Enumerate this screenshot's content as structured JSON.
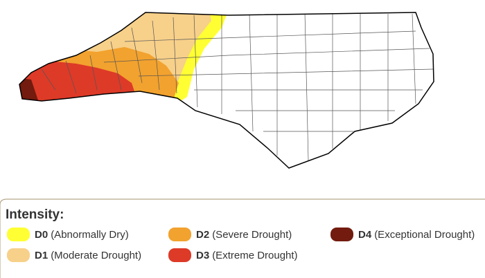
{
  "legend": {
    "title": "Intensity:",
    "items": [
      {
        "code": "D0",
        "label": "(Abnormally Dry)",
        "color": "#ffff33"
      },
      {
        "code": "D1",
        "label": "(Moderate Drought)",
        "color": "#f7d08a"
      },
      {
        "code": "D2",
        "label": "(Severe Drought)",
        "color": "#f2a22e"
      },
      {
        "code": "D3",
        "label": "(Extreme Drought)",
        "color": "#dd3a28"
      },
      {
        "code": "D4",
        "label": "(Exceptional Drought)",
        "color": "#721b0e"
      }
    ]
  }
}
